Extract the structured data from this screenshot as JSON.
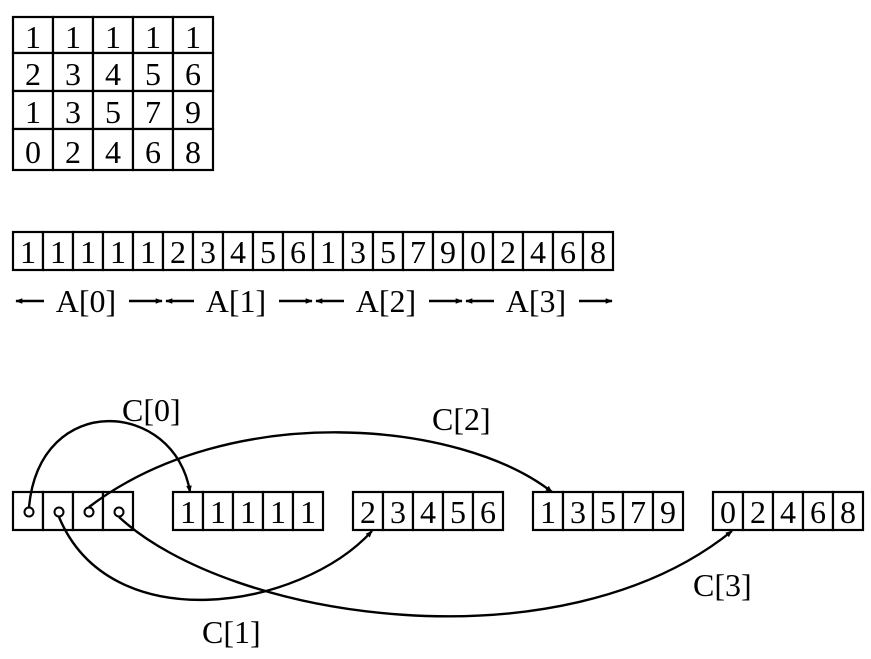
{
  "matrix": {
    "rows": [
      [
        "1",
        "1",
        "1",
        "1",
        "1"
      ],
      [
        "2",
        "3",
        "4",
        "5",
        "6"
      ],
      [
        "1",
        "3",
        "5",
        "7",
        "9"
      ],
      [
        "0",
        "2",
        "4",
        "6",
        "8"
      ]
    ]
  },
  "flat_array": {
    "values": [
      "1",
      "1",
      "1",
      "1",
      "1",
      "2",
      "3",
      "4",
      "5",
      "6",
      "1",
      "3",
      "5",
      "7",
      "9",
      "0",
      "2",
      "4",
      "6",
      "8"
    ],
    "segment_labels": [
      "A[0]",
      "A[1]",
      "A[2]",
      "A[3]"
    ]
  },
  "pointer_array": {
    "slot_count": 4,
    "rows": [
      [
        "1",
        "1",
        "1",
        "1",
        "1"
      ],
      [
        "2",
        "3",
        "4",
        "5",
        "6"
      ],
      [
        "1",
        "3",
        "5",
        "7",
        "9"
      ],
      [
        "0",
        "2",
        "4",
        "6",
        "8"
      ]
    ],
    "pointer_labels": [
      "C[0]",
      "C[1]",
      "C[2]",
      "C[3]"
    ]
  }
}
